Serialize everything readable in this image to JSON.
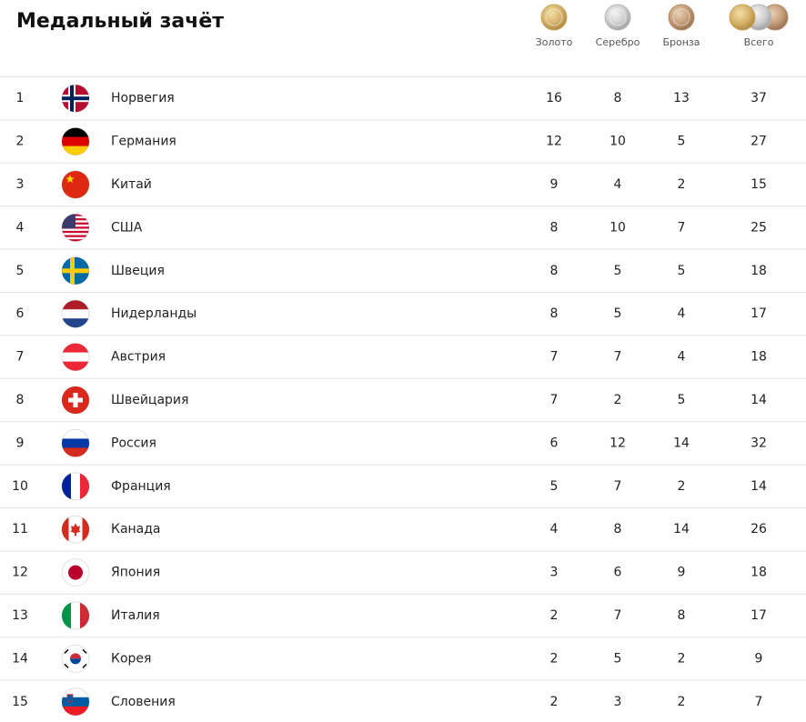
{
  "title": "Медальный зачёт",
  "columns": [
    "Золото",
    "Серебро",
    "Бронза",
    "Всего"
  ],
  "rows": [
    [
      1,
      "Норвегия",
      16,
      8,
      13,
      37
    ],
    [
      2,
      "Германия",
      12,
      10,
      5,
      27
    ],
    [
      3,
      "Китай",
      9,
      4,
      2,
      15
    ],
    [
      4,
      "США",
      8,
      10,
      7,
      25
    ],
    [
      5,
      "Швеция",
      8,
      5,
      5,
      18
    ],
    [
      6,
      "Нидерланды",
      8,
      5,
      4,
      17
    ],
    [
      7,
      "Австрия",
      7,
      7,
      4,
      18
    ],
    [
      8,
      "Швейцария",
      7,
      2,
      5,
      14
    ],
    [
      9,
      "Россия",
      6,
      12,
      14,
      32
    ],
    [
      10,
      "Франция",
      5,
      7,
      2,
      14
    ],
    [
      11,
      "Канада",
      4,
      8,
      14,
      26
    ],
    [
      12,
      "Япония",
      3,
      6,
      9,
      18
    ],
    [
      13,
      "Италия",
      2,
      7,
      8,
      17
    ],
    [
      14,
      "Корея",
      2,
      5,
      2,
      9
    ],
    [
      15,
      "Словения",
      2,
      3,
      2,
      7
    ]
  ]
}
